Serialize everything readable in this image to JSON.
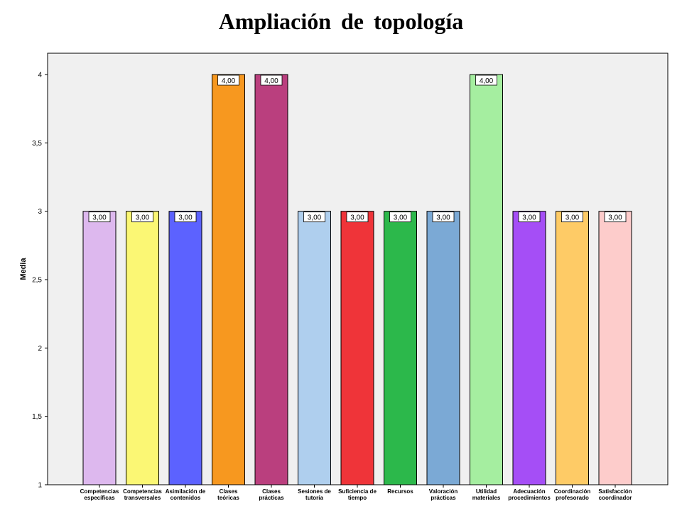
{
  "chart_data": {
    "type": "bar",
    "title": "Ampliación de topología",
    "xlabel": "",
    "ylabel": "Media",
    "ylim": [
      1,
      4
    ],
    "yticks": [
      "1",
      "1,5",
      "2",
      "2,5",
      "3",
      "3,5",
      "4"
    ],
    "ytick_values": [
      1,
      1.5,
      2,
      2.5,
      3,
      3.5,
      4
    ],
    "grid": false,
    "categories": [
      [
        "Competencias",
        "específicas"
      ],
      [
        "Competencias",
        "transversales"
      ],
      [
        "Asimilación de",
        "contenidos"
      ],
      [
        "Clases",
        "teóricas"
      ],
      [
        "Clases",
        "prácticas"
      ],
      [
        "Sesiones de",
        "tutoría"
      ],
      [
        "Suficiencia de",
        "tiempo"
      ],
      [
        "Recursos"
      ],
      [
        "Valoración",
        "prácticas"
      ],
      [
        "Utilidad",
        "materiales"
      ],
      [
        "Adecuación",
        "procedimientos"
      ],
      [
        "Coordinación",
        "profesorado"
      ],
      [
        "Satisfacción",
        "coordinador"
      ]
    ],
    "values": [
      3,
      3,
      3,
      4,
      4,
      3,
      3,
      3,
      3,
      4,
      3,
      3,
      3
    ],
    "value_labels": [
      "3,00",
      "3,00",
      "3,00",
      "4,00",
      "4,00",
      "3,00",
      "3,00",
      "3,00",
      "3,00",
      "4,00",
      "3,00",
      "3,00",
      "3,00"
    ],
    "colors": [
      "#DDB8EE",
      "#FBF774",
      "#5C62FF",
      "#F7981F",
      "#BA3F7E",
      "#AFCFEE",
      "#EF3439",
      "#2CB84B",
      "#7BA9D5",
      "#A5EEA0",
      "#A54EF6",
      "#FECB66",
      "#FDCCCB"
    ],
    "plot_background": "#F0F0F0"
  }
}
